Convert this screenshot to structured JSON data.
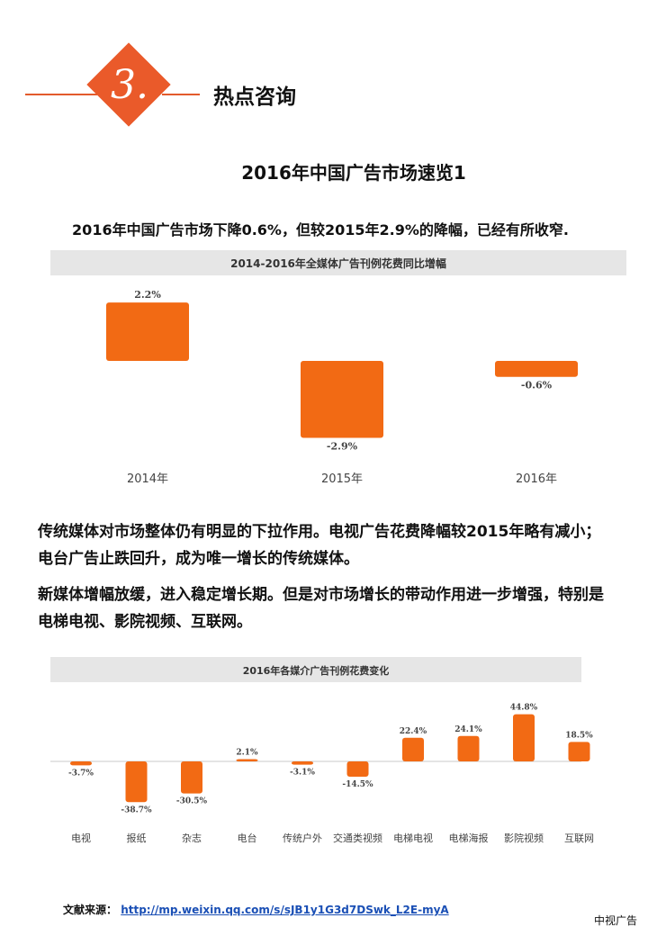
{
  "section": {
    "number": "3.",
    "title": "热点咨询"
  },
  "doc_title": "2016年中国广告市场速览1",
  "lead": "2016年中国广告市场下降0.6%，但较2015年2.9%的降幅，已经有所收窄.",
  "paragraphs": [
    "传统媒体对市场整体仍有明显的下拉作用。电视广告花费降幅较2015年略有减小；电台广告止跌回升，成为唯一增长的传统媒体。",
    "新媒体增幅放缓，进入稳定增长期。但是对市场增长的带动作用进一步增强，特别是电梯电视、影院视频、互联网。"
  ],
  "colors": {
    "accent": "#ea5a2a",
    "bar": "#f26a14",
    "title_band": "#e6e6e6"
  },
  "chart_data": [
    {
      "type": "bar",
      "title": "2014-2016年全媒体广告刊例花费同比增幅",
      "categories": [
        "2014年",
        "2015年",
        "2016年"
      ],
      "values": [
        2.2,
        -2.9,
        -0.6
      ],
      "value_labels": [
        "2.2%",
        "-2.9%",
        "-0.6%"
      ]
    },
    {
      "type": "bar",
      "title": "2016年各媒介广告刊例花费变化",
      "categories": [
        "电视",
        "报纸",
        "杂志",
        "电台",
        "传统户外",
        "交通类视频",
        "电梯电视",
        "电梯海报",
        "影院视频",
        "互联网"
      ],
      "values": [
        -3.7,
        -38.7,
        -30.5,
        2.1,
        -3.1,
        -14.5,
        22.4,
        24.1,
        44.8,
        18.5
      ],
      "value_labels": [
        "-3.7%",
        "-38.7%",
        "-30.5%",
        "2.1%",
        "-3.1%",
        "-14.5%",
        "22.4%",
        "24.1%",
        "44.8%",
        "18.5%"
      ]
    }
  ],
  "source": {
    "label": "文献来源：",
    "url": "http://mp.weixin.qq.com/s/sJB1y1G3d7DSwk_L2E-myA"
  },
  "brand": "中视广告"
}
